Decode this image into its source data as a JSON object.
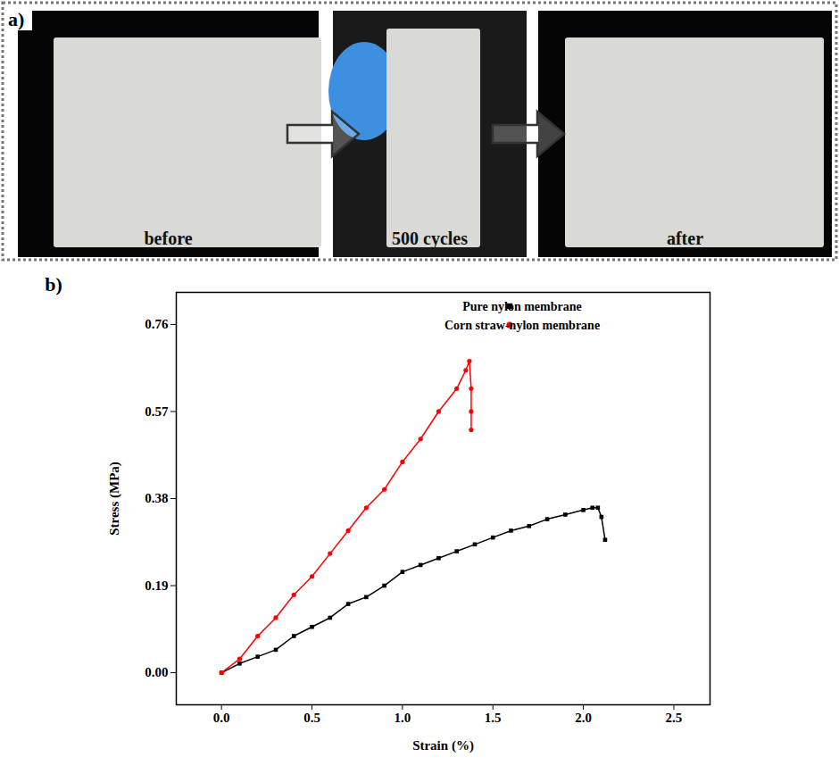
{
  "panel_a": {
    "letter": "a)",
    "photos": [
      "before",
      "500 cycles",
      "after"
    ]
  },
  "chart_data": {
    "type": "line",
    "letter": "b)",
    "x_label": "Strain (%)",
    "y_label": "Stress (MPa)",
    "xlim": [
      -0.25,
      2.7
    ],
    "ylim": [
      -0.07,
      0.83
    ],
    "xticks": [
      {
        "value": 0,
        "label": "0.0"
      },
      0.5,
      {
        "value": 1,
        "label": "1.0"
      },
      1.5,
      {
        "value": 2,
        "label": "2.0"
      },
      2.5
    ],
    "yticks": [
      {
        "value": 0,
        "label": "0.00"
      },
      0.19,
      0.38,
      0.57,
      0.76
    ],
    "grid": false,
    "legend": "top-right",
    "series": [
      {
        "name": "Pure nylon membrane",
        "color": "#000000",
        "marker": "square",
        "x": [
          0,
          0.1,
          0.2,
          0.3,
          0.4,
          0.5,
          0.6,
          0.7,
          0.8,
          0.9,
          1.0,
          1.1,
          1.2,
          1.3,
          1.4,
          1.5,
          1.6,
          1.7,
          1.8,
          1.9,
          2.0,
          2.05,
          2.08,
          2.1,
          2.12
        ],
        "values": [
          0,
          0.02,
          0.035,
          0.05,
          0.08,
          0.1,
          0.12,
          0.15,
          0.165,
          0.19,
          0.22,
          0.235,
          0.25,
          0.265,
          0.28,
          0.295,
          0.31,
          0.32,
          0.335,
          0.345,
          0.355,
          0.36,
          0.36,
          0.34,
          0.29
        ]
      },
      {
        "name": "Corn straw-nylon membrane",
        "color": "#ff0000",
        "marker": "circle",
        "x": [
          0,
          0.1,
          0.2,
          0.3,
          0.4,
          0.5,
          0.6,
          0.7,
          0.8,
          0.9,
          1.0,
          1.1,
          1.2,
          1.3,
          1.35,
          1.37,
          1.38,
          1.38,
          1.38
        ],
        "values": [
          0,
          0.03,
          0.08,
          0.12,
          0.17,
          0.21,
          0.26,
          0.31,
          0.36,
          0.4,
          0.46,
          0.51,
          0.57,
          0.62,
          0.66,
          0.68,
          0.62,
          0.57,
          0.53
        ]
      }
    ]
  }
}
